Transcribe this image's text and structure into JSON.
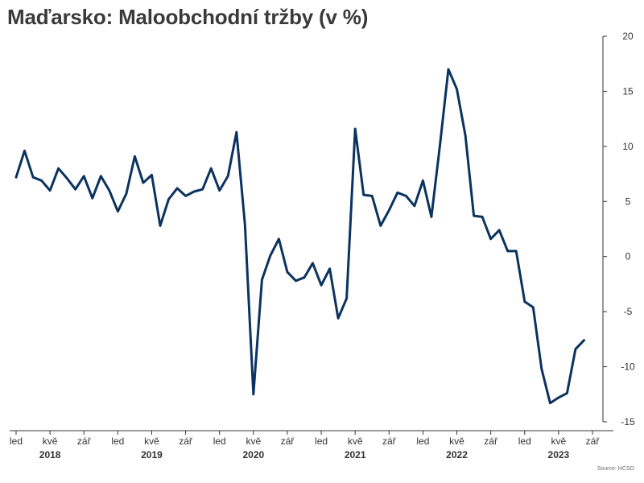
{
  "title": "Maďarsko: Maloobchodní tržby (v %)",
  "source": "Source: HCSO",
  "colors": {
    "line": "#0b3360",
    "axis": "#333333",
    "text": "#333333"
  },
  "chart_data": {
    "type": "line",
    "title": "Maďarsko: Maloobchodní tržby (v %)",
    "xlabel": "",
    "ylabel": "",
    "ylim": [
      -15,
      20
    ],
    "yticks": [
      20,
      15,
      10,
      5,
      0,
      -5,
      -10,
      -15
    ],
    "grid": false,
    "y_axis_side": "right",
    "x_start": "2018-01",
    "x_end": "2023-09",
    "x_tick_labels": [
      {
        "month": "2018-01",
        "label": "led"
      },
      {
        "month": "2018-05",
        "label": "kvě"
      },
      {
        "month": "2018-09",
        "label": "zář"
      },
      {
        "month": "2019-01",
        "label": "led"
      },
      {
        "month": "2019-05",
        "label": "kvě"
      },
      {
        "month": "2019-09",
        "label": "zář"
      },
      {
        "month": "2020-01",
        "label": "led"
      },
      {
        "month": "2020-05",
        "label": "kvě"
      },
      {
        "month": "2020-09",
        "label": "zář"
      },
      {
        "month": "2021-01",
        "label": "led"
      },
      {
        "month": "2021-05",
        "label": "kvě"
      },
      {
        "month": "2021-09",
        "label": "zář"
      },
      {
        "month": "2022-01",
        "label": "led"
      },
      {
        "month": "2022-05",
        "label": "kvě"
      },
      {
        "month": "2022-09",
        "label": "zář"
      },
      {
        "month": "2023-01",
        "label": "led"
      },
      {
        "month": "2023-05",
        "label": "kvě"
      },
      {
        "month": "2023-09",
        "label": "zář"
      }
    ],
    "year_labels": [
      {
        "month": "2018-05",
        "label": "2018"
      },
      {
        "month": "2019-05",
        "label": "2019"
      },
      {
        "month": "2020-05",
        "label": "2020"
      },
      {
        "month": "2021-05",
        "label": "2021"
      },
      {
        "month": "2022-05",
        "label": "2022"
      },
      {
        "month": "2023-05",
        "label": "2023"
      }
    ],
    "series": [
      {
        "color": "#0b3360",
        "points": [
          {
            "x": "2018-01",
            "y": 7.2
          },
          {
            "x": "2018-02",
            "y": 9.6
          },
          {
            "x": "2018-03",
            "y": 7.2
          },
          {
            "x": "2018-04",
            "y": 6.9
          },
          {
            "x": "2018-05",
            "y": 6.0
          },
          {
            "x": "2018-06",
            "y": 8.0
          },
          {
            "x": "2018-07",
            "y": 7.1
          },
          {
            "x": "2018-08",
            "y": 6.1
          },
          {
            "x": "2018-09",
            "y": 7.3
          },
          {
            "x": "2018-10",
            "y": 5.3
          },
          {
            "x": "2018-11",
            "y": 7.3
          },
          {
            "x": "2018-12",
            "y": 6.0
          },
          {
            "x": "2019-01",
            "y": 4.1
          },
          {
            "x": "2019-02",
            "y": 5.7
          },
          {
            "x": "2019-03",
            "y": 9.1
          },
          {
            "x": "2019-04",
            "y": 6.7
          },
          {
            "x": "2019-05",
            "y": 7.4
          },
          {
            "x": "2019-06",
            "y": 2.8
          },
          {
            "x": "2019-07",
            "y": 5.2
          },
          {
            "x": "2019-08",
            "y": 6.2
          },
          {
            "x": "2019-09",
            "y": 5.5
          },
          {
            "x": "2019-10",
            "y": 5.9
          },
          {
            "x": "2019-11",
            "y": 6.1
          },
          {
            "x": "2019-12",
            "y": 8.0
          },
          {
            "x": "2020-01",
            "y": 6.0
          },
          {
            "x": "2020-02",
            "y": 7.3
          },
          {
            "x": "2020-03",
            "y": 11.3
          },
          {
            "x": "2020-04",
            "y": 2.9
          },
          {
            "x": "2020-05",
            "y": -12.5
          },
          {
            "x": "2020-06",
            "y": -2.1
          },
          {
            "x": "2020-07",
            "y": 0.1
          },
          {
            "x": "2020-08",
            "y": 1.6
          },
          {
            "x": "2020-09",
            "y": -1.4
          },
          {
            "x": "2020-10",
            "y": -2.2
          },
          {
            "x": "2020-11",
            "y": -1.9
          },
          {
            "x": "2020-12",
            "y": -0.6
          },
          {
            "x": "2021-01",
            "y": -2.6
          },
          {
            "x": "2021-02",
            "y": -1.1
          },
          {
            "x": "2021-03",
            "y": -5.6
          },
          {
            "x": "2021-04",
            "y": -3.8
          },
          {
            "x": "2021-05",
            "y": 11.6
          },
          {
            "x": "2021-06",
            "y": 5.6
          },
          {
            "x": "2021-07",
            "y": 5.5
          },
          {
            "x": "2021-08",
            "y": 2.8
          },
          {
            "x": "2021-09",
            "y": 4.2
          },
          {
            "x": "2021-10",
            "y": 5.8
          },
          {
            "x": "2021-11",
            "y": 5.5
          },
          {
            "x": "2021-12",
            "y": 4.6
          },
          {
            "x": "2022-01",
            "y": 6.9
          },
          {
            "x": "2022-02",
            "y": 3.6
          },
          {
            "x": "2022-03",
            "y": 10.1
          },
          {
            "x": "2022-04",
            "y": 17.0
          },
          {
            "x": "2022-05",
            "y": 15.2
          },
          {
            "x": "2022-06",
            "y": 11.0
          },
          {
            "x": "2022-07",
            "y": 3.7
          },
          {
            "x": "2022-08",
            "y": 3.6
          },
          {
            "x": "2022-09",
            "y": 1.6
          },
          {
            "x": "2022-10",
            "y": 2.4
          },
          {
            "x": "2022-11",
            "y": 0.5
          },
          {
            "x": "2022-12",
            "y": 0.5
          },
          {
            "x": "2023-01",
            "y": -4.1
          },
          {
            "x": "2023-02",
            "y": -4.6
          },
          {
            "x": "2023-03",
            "y": -10.2
          },
          {
            "x": "2023-04",
            "y": -13.3
          },
          {
            "x": "2023-05",
            "y": -12.8
          },
          {
            "x": "2023-06",
            "y": -12.4
          },
          {
            "x": "2023-07",
            "y": -8.4
          },
          {
            "x": "2023-08",
            "y": -7.6
          }
        ]
      }
    ]
  }
}
